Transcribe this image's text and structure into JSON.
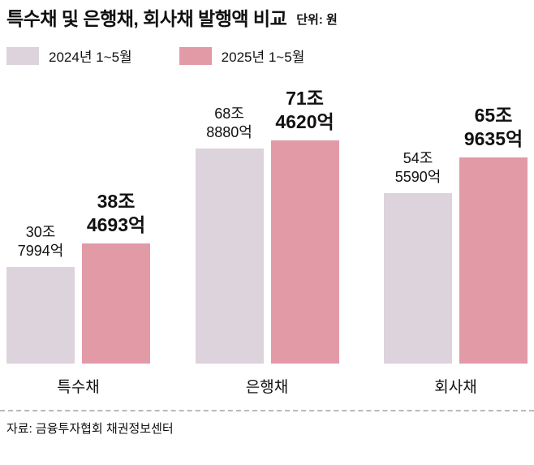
{
  "header": {
    "title": "특수채 및 은행채, 회사채 발행액 비교",
    "unit": "단위: 원"
  },
  "legend": [
    {
      "label": "2024년 1~5월"
    },
    {
      "label": "2025년 1~5월"
    }
  ],
  "chart_data": {
    "type": "bar",
    "title": "특수채 및 은행채, 회사채 발행액 비교",
    "unit_note": "단위: 원",
    "categories": [
      "특수채",
      "은행채",
      "회사채"
    ],
    "series": [
      {
        "name": "2024년 1~5월",
        "color": "#ddd3dc",
        "values": [
          30.7994,
          68.888,
          54.559
        ],
        "labels": [
          [
            "30조",
            "7994억"
          ],
          [
            "68조",
            "8880억"
          ],
          [
            "54조",
            "5590억"
          ]
        ]
      },
      {
        "name": "2025년 1~5월",
        "color": "#e29aa7",
        "values": [
          38.4693,
          71.462,
          65.9635
        ],
        "labels": [
          [
            "38조",
            "4693억"
          ],
          [
            "71조",
            "4620억"
          ],
          [
            "65조",
            "9635억"
          ]
        ]
      }
    ],
    "ylim": [
      0,
      75
    ],
    "legend_position": "top",
    "grid": false
  },
  "footer": {
    "source": "자료: 금융투자협회 채권정보센터"
  }
}
